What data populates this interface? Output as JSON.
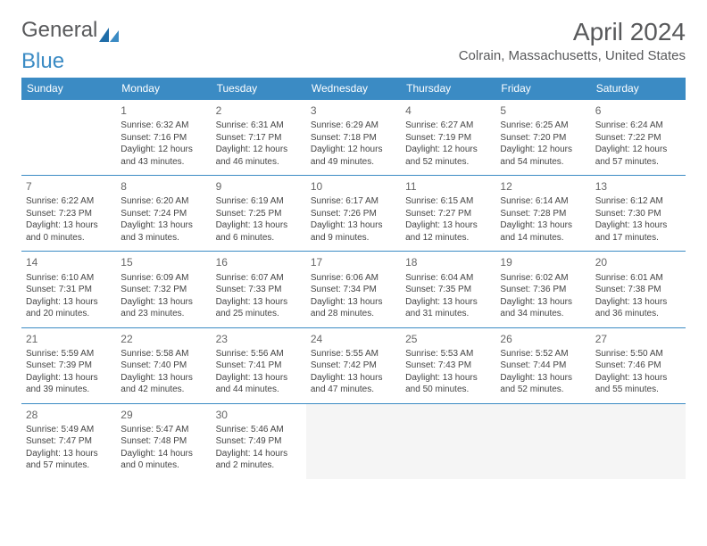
{
  "logo": {
    "text1": "General",
    "text2": "Blue"
  },
  "title": "April 2024",
  "location": "Colrain, Massachusetts, United States",
  "colors": {
    "header_bg": "#3b8bc4",
    "header_text": "#ffffff",
    "rule": "#3b8bc4",
    "text": "#444444",
    "logo_gray": "#58595b",
    "logo_blue": "#3b8bc4"
  },
  "day_headers": [
    "Sunday",
    "Monday",
    "Tuesday",
    "Wednesday",
    "Thursday",
    "Friday",
    "Saturday"
  ],
  "weeks": [
    [
      null,
      {
        "n": "1",
        "sunrise": "6:32 AM",
        "sunset": "7:16 PM",
        "daylight": "12 hours and 43 minutes."
      },
      {
        "n": "2",
        "sunrise": "6:31 AM",
        "sunset": "7:17 PM",
        "daylight": "12 hours and 46 minutes."
      },
      {
        "n": "3",
        "sunrise": "6:29 AM",
        "sunset": "7:18 PM",
        "daylight": "12 hours and 49 minutes."
      },
      {
        "n": "4",
        "sunrise": "6:27 AM",
        "sunset": "7:19 PM",
        "daylight": "12 hours and 52 minutes."
      },
      {
        "n": "5",
        "sunrise": "6:25 AM",
        "sunset": "7:20 PM",
        "daylight": "12 hours and 54 minutes."
      },
      {
        "n": "6",
        "sunrise": "6:24 AM",
        "sunset": "7:22 PM",
        "daylight": "12 hours and 57 minutes."
      }
    ],
    [
      {
        "n": "7",
        "sunrise": "6:22 AM",
        "sunset": "7:23 PM",
        "daylight": "13 hours and 0 minutes."
      },
      {
        "n": "8",
        "sunrise": "6:20 AM",
        "sunset": "7:24 PM",
        "daylight": "13 hours and 3 minutes."
      },
      {
        "n": "9",
        "sunrise": "6:19 AM",
        "sunset": "7:25 PM",
        "daylight": "13 hours and 6 minutes."
      },
      {
        "n": "10",
        "sunrise": "6:17 AM",
        "sunset": "7:26 PM",
        "daylight": "13 hours and 9 minutes."
      },
      {
        "n": "11",
        "sunrise": "6:15 AM",
        "sunset": "7:27 PM",
        "daylight": "13 hours and 12 minutes."
      },
      {
        "n": "12",
        "sunrise": "6:14 AM",
        "sunset": "7:28 PM",
        "daylight": "13 hours and 14 minutes."
      },
      {
        "n": "13",
        "sunrise": "6:12 AM",
        "sunset": "7:30 PM",
        "daylight": "13 hours and 17 minutes."
      }
    ],
    [
      {
        "n": "14",
        "sunrise": "6:10 AM",
        "sunset": "7:31 PM",
        "daylight": "13 hours and 20 minutes."
      },
      {
        "n": "15",
        "sunrise": "6:09 AM",
        "sunset": "7:32 PM",
        "daylight": "13 hours and 23 minutes."
      },
      {
        "n": "16",
        "sunrise": "6:07 AM",
        "sunset": "7:33 PM",
        "daylight": "13 hours and 25 minutes."
      },
      {
        "n": "17",
        "sunrise": "6:06 AM",
        "sunset": "7:34 PM",
        "daylight": "13 hours and 28 minutes."
      },
      {
        "n": "18",
        "sunrise": "6:04 AM",
        "sunset": "7:35 PM",
        "daylight": "13 hours and 31 minutes."
      },
      {
        "n": "19",
        "sunrise": "6:02 AM",
        "sunset": "7:36 PM",
        "daylight": "13 hours and 34 minutes."
      },
      {
        "n": "20",
        "sunrise": "6:01 AM",
        "sunset": "7:38 PM",
        "daylight": "13 hours and 36 minutes."
      }
    ],
    [
      {
        "n": "21",
        "sunrise": "5:59 AM",
        "sunset": "7:39 PM",
        "daylight": "13 hours and 39 minutes."
      },
      {
        "n": "22",
        "sunrise": "5:58 AM",
        "sunset": "7:40 PM",
        "daylight": "13 hours and 42 minutes."
      },
      {
        "n": "23",
        "sunrise": "5:56 AM",
        "sunset": "7:41 PM",
        "daylight": "13 hours and 44 minutes."
      },
      {
        "n": "24",
        "sunrise": "5:55 AM",
        "sunset": "7:42 PM",
        "daylight": "13 hours and 47 minutes."
      },
      {
        "n": "25",
        "sunrise": "5:53 AM",
        "sunset": "7:43 PM",
        "daylight": "13 hours and 50 minutes."
      },
      {
        "n": "26",
        "sunrise": "5:52 AM",
        "sunset": "7:44 PM",
        "daylight": "13 hours and 52 minutes."
      },
      {
        "n": "27",
        "sunrise": "5:50 AM",
        "sunset": "7:46 PM",
        "daylight": "13 hours and 55 minutes."
      }
    ],
    [
      {
        "n": "28",
        "sunrise": "5:49 AM",
        "sunset": "7:47 PM",
        "daylight": "13 hours and 57 minutes."
      },
      {
        "n": "29",
        "sunrise": "5:47 AM",
        "sunset": "7:48 PM",
        "daylight": "14 hours and 0 minutes."
      },
      {
        "n": "30",
        "sunrise": "5:46 AM",
        "sunset": "7:49 PM",
        "daylight": "14 hours and 2 minutes."
      },
      null,
      null,
      null,
      null
    ]
  ],
  "labels": {
    "sunrise_prefix": "Sunrise: ",
    "sunset_prefix": "Sunset: ",
    "daylight_prefix": "Daylight: "
  }
}
